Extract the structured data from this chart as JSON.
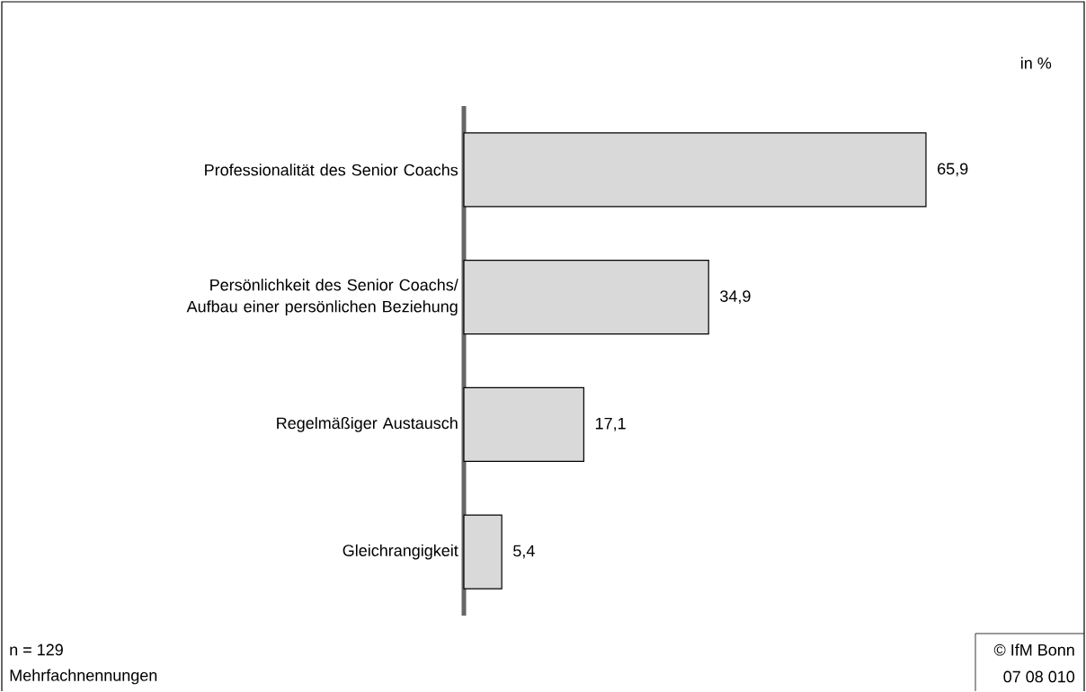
{
  "chart_data": {
    "type": "bar",
    "orientation": "horizontal",
    "categories": [
      "Professionalität des Senior Coachs",
      "Persönlichkeit des Senior Coachs/ Aufbau einer persönlichen Beziehung",
      "Regelmäßiger Austausch",
      "Gleichrangigkeit"
    ],
    "values": [
      65.9,
      34.9,
      17.1,
      5.4
    ],
    "value_labels": [
      "65,9",
      "34,9",
      "17,1",
      "5,4"
    ],
    "color": "#d9d9d9",
    "annotations": [
      "in %",
      "n = 129",
      "Mehrfachnennungen",
      "© IfM Bonn",
      "07 08 010"
    ]
  }
}
